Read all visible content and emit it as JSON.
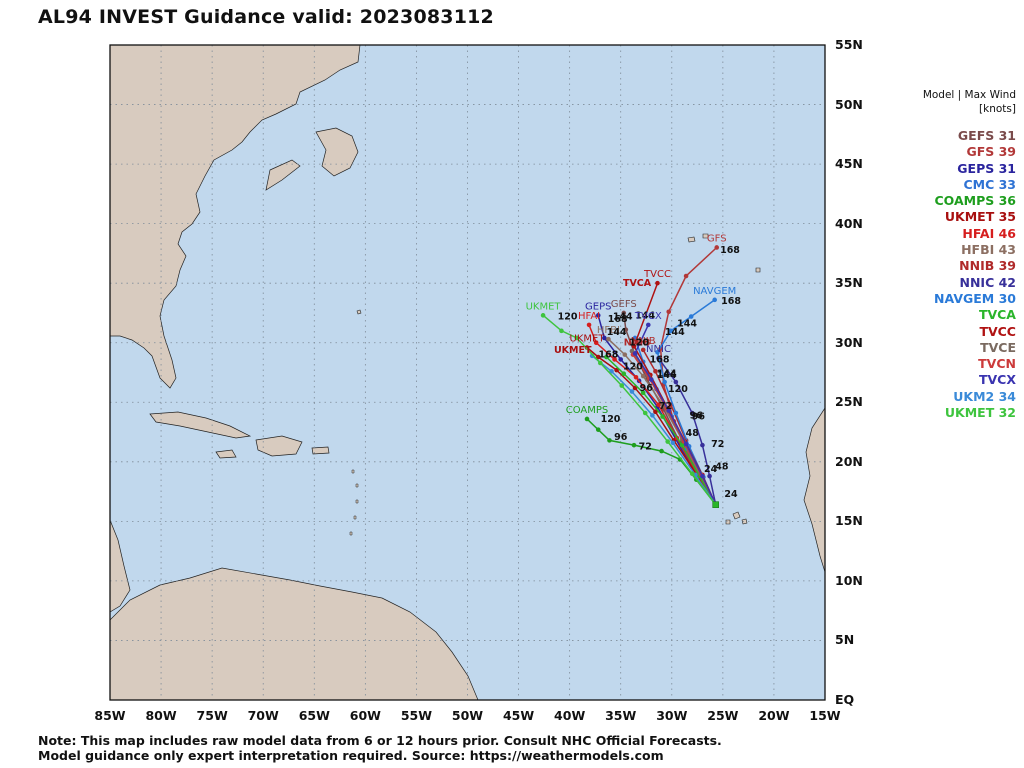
{
  "title": "AL94 INVEST Guidance valid: 2023083112",
  "axes": {
    "lat_labels": [
      "55N",
      "50N",
      "45N",
      "40N",
      "35N",
      "30N",
      "25N",
      "20N",
      "15N",
      "10N",
      "5N",
      "EQ"
    ],
    "lon_labels": [
      "85W",
      "80W",
      "75W",
      "70W",
      "65W",
      "60W",
      "55W",
      "50W",
      "45W",
      "40W",
      "35W",
      "30W",
      "25W",
      "20W",
      "15W"
    ]
  },
  "colors": {
    "ocean": "#c1d8ed",
    "land": "#d8cbbf",
    "grid": "#7f8c99"
  },
  "legend": {
    "header_line1": "Model | Max Wind",
    "header_line2": "[knots]",
    "models": [
      {
        "name": "GEFS",
        "wind": "31",
        "color": "#7a4b4b"
      },
      {
        "name": "GFS",
        "wind": "39",
        "color": "#b23838"
      },
      {
        "name": "GEPS",
        "wind": "31",
        "color": "#2a249e"
      },
      {
        "name": "CMC",
        "wind": "33",
        "color": "#2f73d4"
      },
      {
        "name": "COAMPS",
        "wind": "36",
        "color": "#1e9e1e"
      },
      {
        "name": "UKMET",
        "wind": "35",
        "color": "#a80f0f"
      },
      {
        "name": "HFAI",
        "wind": "46",
        "color": "#d61e1e"
      },
      {
        "name": "HFBI",
        "wind": "43",
        "color": "#8c6f62"
      },
      {
        "name": "NNIB",
        "wind": "39",
        "color": "#b02a2a"
      },
      {
        "name": "NNIC",
        "wind": "42",
        "color": "#38309a"
      },
      {
        "name": "NAVGEM",
        "wind": "30",
        "color": "#2a7ad8"
      },
      {
        "name": "TVCA",
        "wind": "",
        "color": "#2ab52a"
      },
      {
        "name": "TVCC",
        "wind": "",
        "color": "#b01212"
      },
      {
        "name": "TVCE",
        "wind": "",
        "color": "#7a6a60"
      },
      {
        "name": "TVCN",
        "wind": "",
        "color": "#cc3a3a"
      },
      {
        "name": "TVCX",
        "wind": "",
        "color": "#3a34b0"
      },
      {
        "name": "UKM2",
        "wind": "34",
        "color": "#3a8ad8"
      },
      {
        "name": "UKMET",
        "wind": "32",
        "color": "#3ec43e"
      }
    ]
  },
  "tracks": [
    {
      "model": "GFS",
      "color": "#b23838",
      "label": "GFS",
      "points": [
        [
          -25.7,
          16.4
        ],
        [
          -27.2,
          18.7
        ],
        [
          -28.4,
          20.6
        ],
        [
          -29.8,
          23.4
        ],
        [
          -30.8,
          26.5
        ],
        [
          -31.1,
          29.5
        ],
        [
          -30.3,
          32.6
        ],
        [
          -28.6,
          35.6
        ],
        [
          -25.6,
          38.0
        ]
      ],
      "tau_labels": [
        {
          "text": "168",
          "lon": -24.3,
          "lat": 37.8
        }
      ]
    },
    {
      "model": "GEFS",
      "color": "#7a4b4b",
      "label": "GEFS",
      "points": [
        [
          -25.7,
          16.4
        ],
        [
          -27.6,
          18.9
        ],
        [
          -29.2,
          21.6
        ],
        [
          -30.8,
          24.4
        ],
        [
          -32.4,
          26.9
        ],
        [
          -33.6,
          29.0
        ],
        [
          -34.5,
          31.1
        ],
        [
          -34.7,
          32.5
        ]
      ],
      "tau_labels": [
        {
          "text": "144",
          "lon": -32.6,
          "lat": 32.3
        }
      ]
    },
    {
      "model": "GEPS",
      "color": "#2a249e",
      "label": "GEPS",
      "points": [
        [
          -25.7,
          16.4
        ],
        [
          -27.8,
          19.1
        ],
        [
          -29.6,
          21.9
        ],
        [
          -31.4,
          24.6
        ],
        [
          -33.2,
          26.8
        ],
        [
          -35.0,
          28.6
        ],
        [
          -36.6,
          30.4
        ],
        [
          -37.2,
          32.3
        ]
      ],
      "tau_labels": [
        {
          "text": "168",
          "lon": -35.3,
          "lat": 32.0
        }
      ]
    },
    {
      "model": "CMC",
      "color": "#2f73d4",
      "label": "",
      "points": [
        [
          -25.7,
          16.4
        ],
        [
          -27.0,
          18.6
        ],
        [
          -28.5,
          21.1
        ],
        [
          -30.0,
          23.8
        ],
        [
          -31.5,
          26.1
        ],
        [
          -32.8,
          28.4
        ],
        [
          -33.6,
          30.4
        ]
      ],
      "tau_labels": []
    },
    {
      "model": "COAMPS",
      "color": "#1e9e1e",
      "label": "COAMPS",
      "points": [
        [
          -25.7,
          16.4
        ],
        [
          -27.6,
          18.5
        ],
        [
          -29.2,
          20.2
        ],
        [
          -31.0,
          20.9
        ],
        [
          -33.7,
          21.4
        ],
        [
          -36.1,
          21.8
        ],
        [
          -37.2,
          22.7
        ],
        [
          -38.3,
          23.6
        ]
      ],
      "tau_labels": [
        {
          "text": "72",
          "lon": -32.6,
          "lat": 21.3
        },
        {
          "text": "96",
          "lon": -35.0,
          "lat": 22.1
        },
        {
          "text": "120",
          "lon": -36.0,
          "lat": 23.6
        }
      ]
    },
    {
      "model": "UKMET",
      "color": "#a80f0f",
      "label": "UKMET",
      "points": [
        [
          -25.7,
          16.4
        ],
        [
          -27.6,
          19.0
        ],
        [
          -29.8,
          21.8
        ],
        [
          -31.6,
          24.2
        ],
        [
          -33.6,
          26.2
        ],
        [
          -35.4,
          27.7
        ],
        [
          -37.2,
          28.8
        ],
        [
          -38.3,
          29.6
        ]
      ],
      "tau_labels": []
    },
    {
      "model": "HFAI",
      "color": "#d61e1e",
      "label": "HFAI",
      "points": [
        [
          -25.7,
          16.4
        ],
        [
          -27.5,
          19.0
        ],
        [
          -29.5,
          22.0
        ],
        [
          -31.3,
          24.8
        ],
        [
          -33.5,
          27.1
        ],
        [
          -35.6,
          28.6
        ],
        [
          -37.4,
          30.0
        ],
        [
          -38.1,
          31.5
        ]
      ],
      "tau_labels": []
    },
    {
      "model": "HFBI",
      "color": "#8c6f62",
      "label": "HFBI",
      "points": [
        [
          -25.7,
          16.4
        ],
        [
          -27.3,
          19.0
        ],
        [
          -29.0,
          21.9
        ],
        [
          -30.9,
          24.8
        ],
        [
          -32.8,
          27.2
        ],
        [
          -34.6,
          29.0
        ],
        [
          -36.2,
          30.3
        ]
      ],
      "tau_labels": [
        {
          "text": "144",
          "lon": -35.4,
          "lat": 30.9
        }
      ]
    },
    {
      "model": "NNIB",
      "color": "#b02a2a",
      "label": "NNIB",
      "points": [
        [
          -25.7,
          16.4
        ],
        [
          -27.1,
          18.9
        ],
        [
          -28.6,
          21.8
        ],
        [
          -30.1,
          24.8
        ],
        [
          -31.6,
          27.6
        ],
        [
          -32.8,
          29.4
        ]
      ],
      "tau_labels": []
    },
    {
      "model": "NNIC",
      "color": "#38309a",
      "label": "NNIC",
      "points": [
        [
          -25.7,
          16.4
        ],
        [
          -26.3,
          18.8
        ],
        [
          -27.0,
          21.4
        ],
        [
          -28.0,
          24.1
        ],
        [
          -29.6,
          26.7
        ],
        [
          -31.3,
          28.7
        ]
      ],
      "tau_labels": [
        {
          "text": "96",
          "lon": -27.6,
          "lat": 23.9
        },
        {
          "text": "120",
          "lon": -29.4,
          "lat": 26.1
        },
        {
          "text": "144",
          "lon": -30.5,
          "lat": 27.4
        },
        {
          "text": "168",
          "lon": -31.2,
          "lat": 28.6
        }
      ]
    },
    {
      "model": "NAVGEM",
      "color": "#2a7ad8",
      "label": "NAVGEM",
      "points": [
        [
          -25.7,
          16.4
        ],
        [
          -26.9,
          18.7
        ],
        [
          -28.3,
          21.3
        ],
        [
          -29.6,
          24.1
        ],
        [
          -30.7,
          26.7
        ],
        [
          -31.4,
          29.2
        ],
        [
          -30.1,
          31.0
        ],
        [
          -28.1,
          32.2
        ],
        [
          -25.8,
          33.6
        ]
      ],
      "tau_labels": [
        {
          "text": "144",
          "lon": -29.7,
          "lat": 30.9
        },
        {
          "text": "144",
          "lon": -28.5,
          "lat": 31.6
        },
        {
          "text": "168",
          "lon": -24.2,
          "lat": 33.5
        }
      ]
    },
    {
      "model": "TVCA",
      "color": "#2ab52a",
      "label": "",
      "points": [
        [
          -25.7,
          16.4
        ],
        [
          -27.3,
          18.8
        ],
        [
          -29.0,
          21.4
        ],
        [
          -30.9,
          23.8
        ],
        [
          -32.8,
          25.8
        ],
        [
          -34.7,
          27.4
        ],
        [
          -36.4,
          28.8
        ]
      ],
      "tau_labels": []
    },
    {
      "model": "TVCC",
      "color": "#b01212",
      "label": "TVCC",
      "points": [
        [
          -25.7,
          16.4
        ],
        [
          -27.0,
          18.9
        ],
        [
          -28.7,
          21.7
        ],
        [
          -30.4,
          24.5
        ],
        [
          -32.1,
          27.3
        ],
        [
          -33.7,
          29.7
        ],
        [
          -31.4,
          35.0
        ]
      ],
      "tau_labels": []
    },
    {
      "model": "TVCE",
      "color": "#7a6a60",
      "label": "",
      "points": [
        [
          -25.7,
          16.4
        ],
        [
          -27.2,
          19.0
        ],
        [
          -28.9,
          21.8
        ],
        [
          -30.6,
          24.6
        ],
        [
          -32.3,
          27.2
        ],
        [
          -33.9,
          29.3
        ]
      ],
      "tau_labels": []
    },
    {
      "model": "TVCN",
      "color": "#cc3a3a",
      "label": "",
      "points": [
        [
          -25.7,
          16.4
        ],
        [
          -27.1,
          18.9
        ],
        [
          -28.8,
          21.7
        ],
        [
          -30.5,
          24.5
        ],
        [
          -32.2,
          27.0
        ],
        [
          -33.8,
          29.0
        ]
      ],
      "tau_labels": []
    },
    {
      "model": "TVCX",
      "color": "#3a34b0",
      "label": "TVCX",
      "points": [
        [
          -25.7,
          16.4
        ],
        [
          -27.0,
          18.8
        ],
        [
          -28.6,
          21.5
        ],
        [
          -30.3,
          24.3
        ],
        [
          -32.0,
          26.9
        ],
        [
          -33.6,
          29.1
        ],
        [
          -32.3,
          31.5
        ]
      ],
      "tau_labels": []
    },
    {
      "model": "UKM2",
      "color": "#3a8ad8",
      "label": "",
      "points": [
        [
          -25.7,
          16.4
        ],
        [
          -27.7,
          18.9
        ],
        [
          -29.9,
          21.6
        ],
        [
          -31.9,
          23.9
        ],
        [
          -33.9,
          25.9
        ],
        [
          -35.9,
          27.6
        ],
        [
          -37.8,
          28.9
        ]
      ],
      "tau_labels": []
    },
    {
      "model": "UKMET",
      "color": "#3ec43e",
      "label": "UKMET",
      "points": [
        [
          -25.7,
          16.4
        ],
        [
          -28.0,
          19.0
        ],
        [
          -30.4,
          21.7
        ],
        [
          -32.6,
          24.1
        ],
        [
          -34.9,
          26.4
        ],
        [
          -37.0,
          28.3
        ],
        [
          -39.3,
          30.4
        ],
        [
          -40.8,
          31.0
        ],
        [
          -42.6,
          32.3
        ]
      ],
      "tau_labels": [
        {
          "text": "120",
          "lon": -40.2,
          "lat": 32.2
        }
      ]
    }
  ],
  "extra_labels": [
    {
      "text": "TVCA",
      "color": "#b01212",
      "lon": -33.4,
      "lat": 35.0
    },
    {
      "text": "NNIB",
      "color": "#b02a2a",
      "lon": -33.4,
      "lat": 30.0
    },
    {
      "text": "UKMET",
      "color": "#a80f0f",
      "lon": -39.7,
      "lat": 29.4
    },
    {
      "text": "24",
      "color": "#111111",
      "lon": -24.2,
      "lat": 17.3
    },
    {
      "text": "24",
      "color": "#111111",
      "lon": -26.2,
      "lat": 19.4
    },
    {
      "text": "48",
      "color": "#111111",
      "lon": -25.1,
      "lat": 19.6
    },
    {
      "text": "48",
      "color": "#111111",
      "lon": -28.0,
      "lat": 22.4
    },
    {
      "text": "72",
      "color": "#111111",
      "lon": -25.5,
      "lat": 21.5
    },
    {
      "text": "72",
      "color": "#111111",
      "lon": -30.6,
      "lat": 24.7
    },
    {
      "text": "96",
      "color": "#111111",
      "lon": -32.5,
      "lat": 26.2
    },
    {
      "text": "96",
      "color": "#111111",
      "lon": -27.4,
      "lat": 23.8
    },
    {
      "text": "120",
      "color": "#111111",
      "lon": -33.8,
      "lat": 28.0
    },
    {
      "text": "120",
      "color": "#111111",
      "lon": -33.2,
      "lat": 30.0
    },
    {
      "text": "144",
      "color": "#111111",
      "lon": -30.5,
      "lat": 27.3
    },
    {
      "text": "144",
      "color": "#111111",
      "lon": -34.8,
      "lat": 32.2
    },
    {
      "text": "168",
      "color": "#111111",
      "lon": -36.2,
      "lat": 29.0
    }
  ],
  "footer": {
    "line1": "Note: This map includes raw model data from 6 or 12 hours prior. Consult NHC Official Forecasts.",
    "line2": "Model guidance only expert interpretation required. Source: https://weathermodels.com"
  }
}
